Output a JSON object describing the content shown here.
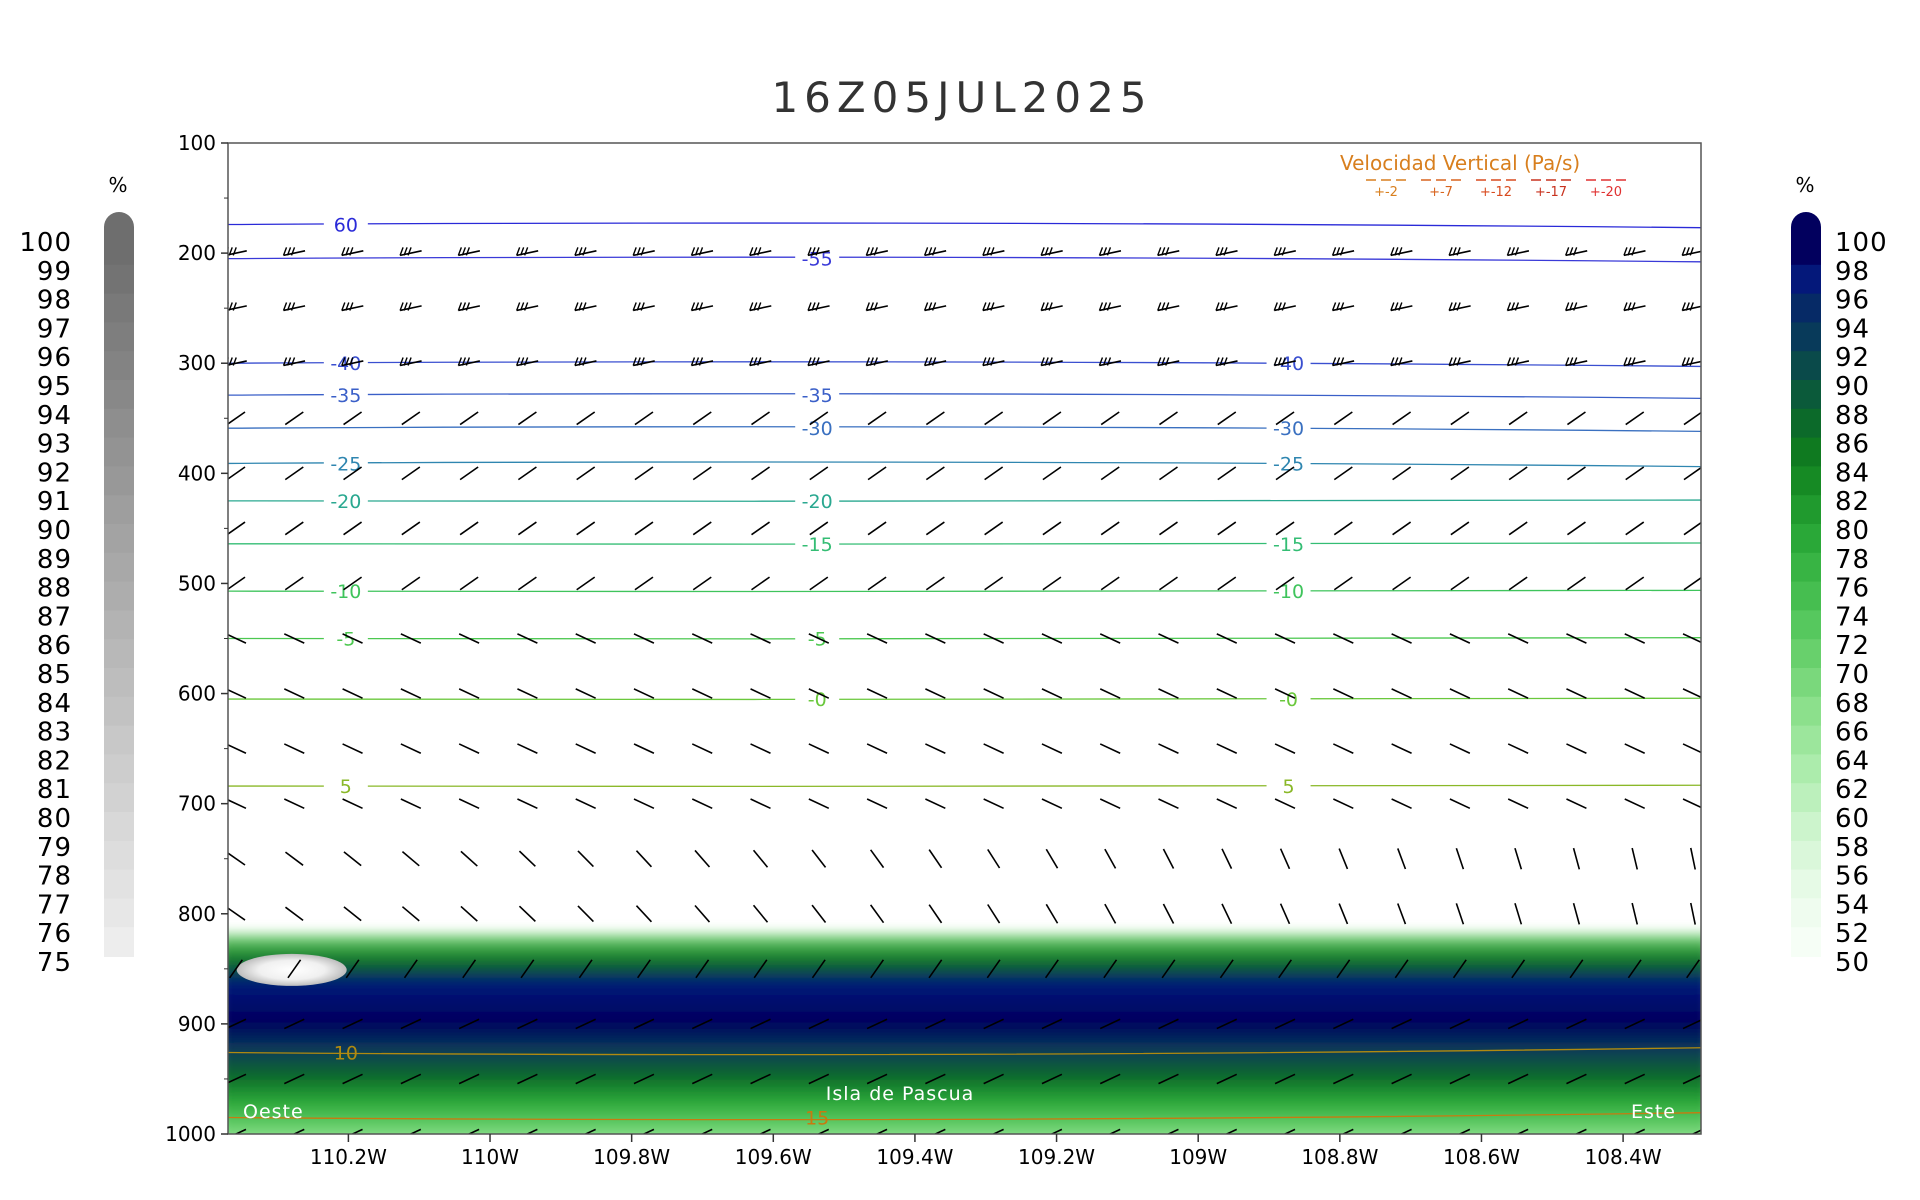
{
  "chart_data": {
    "type": "heatmap",
    "title": "16Z05JUL2025",
    "x_ticks": [
      "110.2W",
      "110W",
      "109.8W",
      "109.6W",
      "109.4W",
      "109.2W",
      "109W",
      "108.8W",
      "108.6W",
      "108.4W"
    ],
    "x_tick_values": [
      -110.2,
      -110.0,
      -109.8,
      -109.6,
      -109.4,
      -109.2,
      -109.0,
      -108.8,
      -108.6,
      -108.4
    ],
    "xlim": [
      -110.37,
      -108.29
    ],
    "y_ticks": [
      "100",
      "200",
      "300",
      "400",
      "500",
      "600",
      "700",
      "800",
      "900",
      "1000"
    ],
    "ylim": [
      100,
      1000
    ],
    "y_axis": "pressure (inverted)",
    "left_colorbar": {
      "unit": "%",
      "labels": [
        "100",
        "99",
        "98",
        "97",
        "96",
        "95",
        "94",
        "93",
        "92",
        "91",
        "90",
        "89",
        "88",
        "87",
        "86",
        "85",
        "84",
        "83",
        "82",
        "81",
        "80",
        "79",
        "78",
        "77",
        "76",
        "75"
      ],
      "color_light": "#f2f2f2",
      "color_dark": "#6e6e6e"
    },
    "right_colorbar": {
      "unit": "%",
      "labels": [
        "100",
        "98",
        "96",
        "94",
        "92",
        "90",
        "88",
        "86",
        "84",
        "82",
        "80",
        "78",
        "76",
        "74",
        "72",
        "70",
        "68",
        "66",
        "64",
        "62",
        "60",
        "58",
        "56",
        "54",
        "52",
        "50"
      ],
      "colors": [
        "#02005e",
        "#04187a",
        "#062a66",
        "#083a5a",
        "#0a4a4a",
        "#0b5a3a",
        "#0c6a2a",
        "#0f7a20",
        "#168a24",
        "#209a2e",
        "#2aa838",
        "#38b444",
        "#46be50",
        "#56c85e",
        "#68d06c",
        "#7ad87c",
        "#8ce08c",
        "#9ce69c",
        "#acecac",
        "#bcf0bc",
        "#ccf4cc",
        "#daf7da",
        "#e6fae6",
        "#effcef",
        "#f6fef6"
      ]
    },
    "temperature_contours": [
      {
        "label": "60",
        "p": 174,
        "color": "#2a2ad8"
      },
      {
        "label": "-55",
        "p": 205,
        "color": "#3a3ad8"
      },
      {
        "label": "-40",
        "p": 300,
        "color": "#3a4fd0"
      },
      {
        "label": "-35",
        "p": 329,
        "color": "#3a5fc8"
      },
      {
        "label": "-30",
        "p": 359,
        "color": "#3a70c0"
      },
      {
        "label": "-25",
        "p": 391,
        "color": "#2f86b0"
      },
      {
        "label": "-20",
        "p": 425,
        "color": "#2aa890"
      },
      {
        "label": "-15",
        "p": 464,
        "color": "#34bd74"
      },
      {
        "label": "-10",
        "p": 507,
        "color": "#3fc45c"
      },
      {
        "label": "-5",
        "p": 550,
        "color": "#4cc850"
      },
      {
        "label": "-0",
        "p": 605,
        "color": "#6ac83c"
      },
      {
        "label": "5",
        "p": 684,
        "color": "#8ab828"
      },
      {
        "label": "10",
        "p": 926,
        "color": "#b08a10"
      },
      {
        "label": "15",
        "p": 985,
        "color": "#c87a10"
      }
    ],
    "legend": {
      "title": "Velocidad Vertical (Pa/s)",
      "entries": [
        "+-2",
        "+-7",
        "+-12",
        "+-17",
        "+-20"
      ],
      "colors": [
        "#d87f1e",
        "#d8641e",
        "#d84a1e",
        "#c8321e",
        "#e03030"
      ]
    },
    "annotations": {
      "left": "Oeste",
      "center": "Isla de Pascua",
      "right": "Este"
    }
  }
}
